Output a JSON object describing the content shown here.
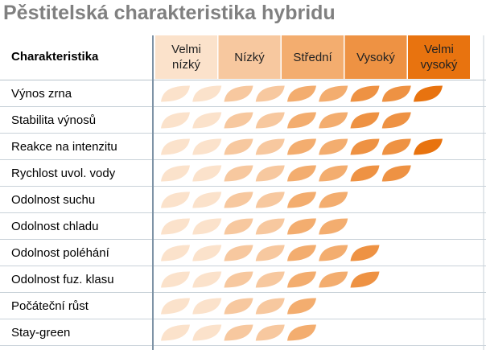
{
  "chart_data": {
    "type": "rating",
    "title": "Pěstitelská charakteristika hybridu",
    "row_header": "Charakteristika",
    "levels": [
      "Velmi nízký",
      "Nízký",
      "Střední",
      "Vysoký",
      "Velmi vysoký"
    ],
    "colors": [
      "#fbe2cb",
      "#f7c89f",
      "#f3ad6f",
      "#ee9243",
      "#e8730f"
    ],
    "categories": [
      "Výnos zrna",
      "Stabilita výnosů",
      "Reakce na intenzitu",
      "Rychlost uvol. vody",
      "Odolnost suchu",
      "Odolnost chladu",
      "Odolnost poléhání",
      "Odolnost fuz. klasu",
      "Počáteční růst",
      "Stay-green"
    ],
    "values": [
      9,
      8,
      9,
      8,
      6,
      6,
      7,
      7,
      5,
      5
    ]
  }
}
